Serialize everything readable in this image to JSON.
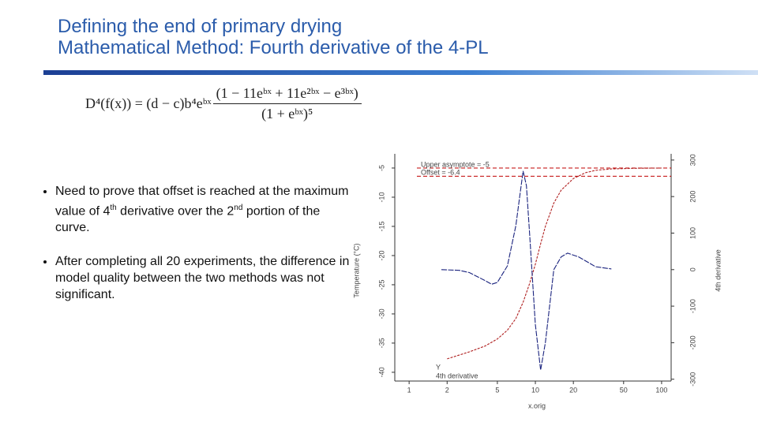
{
  "header": {
    "title": [
      "Defining the end of primary drying",
      "Mathematical Method: Fourth derivative of the 4-PL"
    ]
  },
  "formula": {
    "lhs": "D⁴(f(x)) = (d − c)b⁴eᵇˣ",
    "numerator": "(1 − 11eᵇˣ + 11e²ᵇˣ − e³ᵇˣ)",
    "denominator": "(1 + eᵇˣ)⁵"
  },
  "bullets": [
    [
      "Need to prove that offset is reached at the maximum value of 4",
      "th",
      " derivative over the 2",
      "nd",
      " portion of the curve."
    ],
    [
      "After completing all 20 experiments, the difference in model quality between the two methods was not significant."
    ]
  ],
  "chart": {
    "type": "line",
    "xlabel": "x.orig",
    "ylabel": "Temperature (°C)",
    "y2label": "4th derivative",
    "xscale": "log",
    "xlim": [
      0.77,
      119
    ],
    "xticks": [
      1,
      2,
      5,
      10,
      20,
      50,
      100
    ],
    "ylim": [
      -41.5,
      -2.57
    ],
    "yticks": [
      -5,
      -10,
      -15,
      -20,
      -25,
      -30,
      -35,
      -40
    ],
    "y2lim": [
      -305,
      317
    ],
    "y2ticks": [
      300,
      200,
      100,
      0,
      -100,
      -200,
      -300
    ],
    "annotations": [
      {
        "text": "Upper asymptote = -5",
        "value": -5,
        "color": "#c00000"
      },
      {
        "text": "Offset = -6.4",
        "value": -6.4,
        "color": "#c00000"
      }
    ],
    "series": [
      {
        "name": "Y",
        "color": "#b02020",
        "x": [
          2,
          3,
          4,
          5,
          6,
          7,
          8,
          9,
          10,
          11,
          12,
          14,
          16,
          20,
          25,
          30,
          40,
          60,
          100
        ],
        "values": [
          -37.7,
          -36.5,
          -35.5,
          -34.3,
          -32.8,
          -30.8,
          -28,
          -24.8,
          -21.5,
          -18,
          -15,
          -11,
          -8.8,
          -6.8,
          -5.8,
          -5.4,
          -5.15,
          -5.05,
          -5
        ]
      },
      {
        "name": "4th derivative",
        "color": "#1a237e",
        "axis": "y2",
        "x": [
          1.8,
          2.5,
          3,
          4,
          4.5,
          5,
          6,
          7,
          8,
          8.5,
          9,
          10,
          11,
          12,
          14,
          16,
          18,
          22,
          30,
          40
        ],
        "values": [
          0,
          -2,
          -8,
          -30,
          -40,
          -35,
          10,
          120,
          270,
          230,
          100,
          -150,
          -275,
          -200,
          0,
          35,
          45,
          35,
          8,
          2
        ]
      }
    ]
  }
}
